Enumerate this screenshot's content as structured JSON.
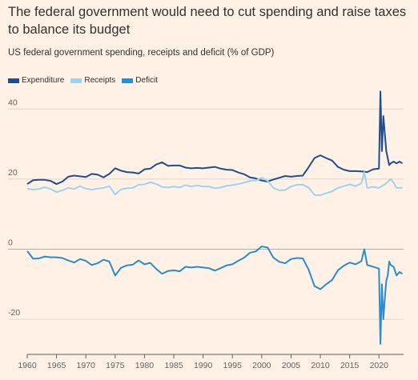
{
  "header": {
    "title": "The federal government would need to cut spending and raise taxes to balance its budget",
    "subtitle": "US federal government spending, receipts and deficit (% of GDP)"
  },
  "colors": {
    "background": "#fff1e5",
    "expenditure": "#1f4e8c",
    "receipts": "#9fd3ec",
    "deficit": "#2a8ccf",
    "grid": "#e0d6cc",
    "zero_line": "#b8aea6"
  },
  "chart_data": {
    "type": "line",
    "title": "The federal government would need to cut spending and raise taxes to balance its budget",
    "subtitle": "US federal government spending, receipts and deficit (% of GDP)",
    "xlabel": "",
    "ylabel": "",
    "xlim": [
      1960,
      2024.2
    ],
    "ylim": [
      -30,
      46
    ],
    "x_ticks": [
      1960,
      1965,
      1970,
      1975,
      1980,
      1985,
      1990,
      1995,
      2000,
      2005,
      2010,
      2015,
      2020
    ],
    "y_ticks": [
      40,
      20,
      0,
      -20
    ],
    "grid": true,
    "legend_position": "top-left",
    "series": [
      {
        "name": "Expenditure",
        "color": "#1f4e8c",
        "points": [
          [
            1960,
            18.6
          ],
          [
            1961,
            19.7
          ],
          [
            1962,
            19.8
          ],
          [
            1963,
            19.8
          ],
          [
            1964,
            19.5
          ],
          [
            1965,
            18.6
          ],
          [
            1966,
            19.3
          ],
          [
            1967,
            20.7
          ],
          [
            1968,
            21.0
          ],
          [
            1969,
            20.8
          ],
          [
            1970,
            20.6
          ],
          [
            1971,
            21.5
          ],
          [
            1972,
            21.3
          ],
          [
            1973,
            20.5
          ],
          [
            1974,
            21.5
          ],
          [
            1975,
            23.1
          ],
          [
            1976,
            22.4
          ],
          [
            1977,
            22.0
          ],
          [
            1978,
            21.9
          ],
          [
            1979,
            21.6
          ],
          [
            1980,
            22.8
          ],
          [
            1981,
            23.0
          ],
          [
            1982,
            24.2
          ],
          [
            1983,
            24.8
          ],
          [
            1984,
            23.8
          ],
          [
            1985,
            23.9
          ],
          [
            1986,
            23.9
          ],
          [
            1987,
            23.3
          ],
          [
            1988,
            23.1
          ],
          [
            1989,
            23.2
          ],
          [
            1990,
            23.1
          ],
          [
            1991,
            23.3
          ],
          [
            1992,
            23.5
          ],
          [
            1993,
            23.0
          ],
          [
            1994,
            22.7
          ],
          [
            1995,
            22.6
          ],
          [
            1996,
            21.9
          ],
          [
            1997,
            21.4
          ],
          [
            1998,
            20.5
          ],
          [
            1999,
            20.2
          ],
          [
            2000,
            19.6
          ],
          [
            2001,
            19.3
          ],
          [
            2002,
            19.9
          ],
          [
            2003,
            20.4
          ],
          [
            2004,
            20.9
          ],
          [
            2005,
            20.7
          ],
          [
            2006,
            20.9
          ],
          [
            2007,
            21.0
          ],
          [
            2008,
            23.4
          ],
          [
            2009,
            26.0
          ],
          [
            2010,
            26.8
          ],
          [
            2011,
            26.0
          ],
          [
            2012,
            25.3
          ],
          [
            2013,
            23.5
          ],
          [
            2014,
            22.7
          ],
          [
            2015,
            22.3
          ],
          [
            2016,
            22.3
          ],
          [
            2017,
            22.2
          ],
          [
            2018,
            22.0
          ],
          [
            2019,
            22.8
          ],
          [
            2020.0,
            23.0
          ],
          [
            2020.25,
            45.0
          ],
          [
            2020.5,
            28.0
          ],
          [
            2020.75,
            38.0
          ],
          [
            2021.0,
            33.0
          ],
          [
            2021.25,
            28.0
          ],
          [
            2021.5,
            26.0
          ],
          [
            2021.75,
            24.0
          ],
          [
            2022.0,
            24.5
          ],
          [
            2022.5,
            25.0
          ],
          [
            2023.0,
            24.5
          ],
          [
            2023.5,
            25.0
          ],
          [
            2024.0,
            24.5
          ]
        ]
      },
      {
        "name": "Receipts",
        "color": "#9fd3ec",
        "points": [
          [
            1960,
            17.3
          ],
          [
            1961,
            17.0
          ],
          [
            1962,
            17.2
          ],
          [
            1963,
            17.7
          ],
          [
            1964,
            17.2
          ],
          [
            1965,
            16.3
          ],
          [
            1966,
            16.8
          ],
          [
            1967,
            17.5
          ],
          [
            1968,
            17.2
          ],
          [
            1969,
            18.0
          ],
          [
            1970,
            17.3
          ],
          [
            1971,
            17.0
          ],
          [
            1972,
            17.3
          ],
          [
            1973,
            17.5
          ],
          [
            1974,
            18.0
          ],
          [
            1975,
            15.6
          ],
          [
            1976,
            17.1
          ],
          [
            1977,
            17.4
          ],
          [
            1978,
            17.5
          ],
          [
            1979,
            18.4
          ],
          [
            1980,
            18.5
          ],
          [
            1981,
            19.1
          ],
          [
            1982,
            18.6
          ],
          [
            1983,
            17.8
          ],
          [
            1984,
            17.6
          ],
          [
            1985,
            17.9
          ],
          [
            1986,
            17.6
          ],
          [
            1987,
            18.3
          ],
          [
            1988,
            17.9
          ],
          [
            1989,
            18.2
          ],
          [
            1990,
            17.9
          ],
          [
            1991,
            17.9
          ],
          [
            1992,
            17.4
          ],
          [
            1993,
            17.6
          ],
          [
            1994,
            18.1
          ],
          [
            1995,
            18.3
          ],
          [
            1996,
            18.6
          ],
          [
            1997,
            19.0
          ],
          [
            1998,
            19.5
          ],
          [
            1999,
            19.6
          ],
          [
            2000,
            20.4
          ],
          [
            2001,
            19.5
          ],
          [
            2002,
            17.5
          ],
          [
            2003,
            16.8
          ],
          [
            2004,
            16.9
          ],
          [
            2005,
            17.9
          ],
          [
            2006,
            18.4
          ],
          [
            2007,
            18.4
          ],
          [
            2008,
            17.6
          ],
          [
            2009,
            15.5
          ],
          [
            2010,
            15.4
          ],
          [
            2011,
            16.0
          ],
          [
            2012,
            16.5
          ],
          [
            2013,
            17.5
          ],
          [
            2014,
            18.0
          ],
          [
            2015,
            18.5
          ],
          [
            2016,
            18.0
          ],
          [
            2017,
            18.8
          ],
          [
            2017.5,
            22.0
          ],
          [
            2018,
            17.5
          ],
          [
            2019,
            17.8
          ],
          [
            2020,
            17.5
          ],
          [
            2021,
            18.5
          ],
          [
            2022,
            20.0
          ],
          [
            2022.5,
            19.0
          ],
          [
            2023,
            17.5
          ],
          [
            2024,
            17.5
          ]
        ]
      },
      {
        "name": "Deficit",
        "color": "#2a8ccf",
        "points": [
          [
            1960,
            -0.5
          ],
          [
            1961,
            -2.7
          ],
          [
            1962,
            -2.6
          ],
          [
            1963,
            -2.1
          ],
          [
            1964,
            -2.3
          ],
          [
            1965,
            -2.3
          ],
          [
            1966,
            -2.5
          ],
          [
            1967,
            -3.2
          ],
          [
            1968,
            -3.8
          ],
          [
            1969,
            -2.8
          ],
          [
            1970,
            -3.3
          ],
          [
            1971,
            -4.5
          ],
          [
            1972,
            -4.0
          ],
          [
            1973,
            -3.0
          ],
          [
            1974,
            -3.5
          ],
          [
            1975,
            -7.5
          ],
          [
            1976,
            -5.3
          ],
          [
            1977,
            -4.6
          ],
          [
            1978,
            -4.4
          ],
          [
            1979,
            -3.2
          ],
          [
            1980,
            -4.3
          ],
          [
            1981,
            -3.9
          ],
          [
            1982,
            -5.6
          ],
          [
            1983,
            -7.0
          ],
          [
            1984,
            -6.2
          ],
          [
            1985,
            -6.0
          ],
          [
            1986,
            -6.3
          ],
          [
            1987,
            -5.0
          ],
          [
            1988,
            -5.2
          ],
          [
            1989,
            -5.0
          ],
          [
            1990,
            -5.2
          ],
          [
            1991,
            -5.4
          ],
          [
            1992,
            -6.1
          ],
          [
            1993,
            -5.4
          ],
          [
            1994,
            -4.6
          ],
          [
            1995,
            -4.3
          ],
          [
            1996,
            -3.3
          ],
          [
            1997,
            -2.4
          ],
          [
            1998,
            -1.0
          ],
          [
            1999,
            -0.6
          ],
          [
            2000,
            0.8
          ],
          [
            2001,
            0.5
          ],
          [
            2002,
            -2.4
          ],
          [
            2003,
            -3.6
          ],
          [
            2004,
            -4.0
          ],
          [
            2005,
            -2.8
          ],
          [
            2006,
            -2.5
          ],
          [
            2007,
            -2.6
          ],
          [
            2008,
            -5.8
          ],
          [
            2009,
            -10.5
          ],
          [
            2010,
            -11.4
          ],
          [
            2011,
            -10.0
          ],
          [
            2012,
            -8.8
          ],
          [
            2013,
            -6.0
          ],
          [
            2014,
            -4.7
          ],
          [
            2015,
            -3.8
          ],
          [
            2016,
            -4.3
          ],
          [
            2017,
            -3.4
          ],
          [
            2017.5,
            0.0
          ],
          [
            2018,
            -4.5
          ],
          [
            2019,
            -5.0
          ],
          [
            2020.0,
            -5.5
          ],
          [
            2020.25,
            -27.0
          ],
          [
            2020.5,
            -10.0
          ],
          [
            2020.75,
            -20.0
          ],
          [
            2021.0,
            -14.0
          ],
          [
            2021.25,
            -9.0
          ],
          [
            2021.5,
            -7.5
          ],
          [
            2021.75,
            -3.5
          ],
          [
            2022.0,
            -4.5
          ],
          [
            2022.5,
            -5.0
          ],
          [
            2023.0,
            -7.5
          ],
          [
            2023.5,
            -6.5
          ],
          [
            2024.0,
            -7.0
          ]
        ]
      }
    ]
  }
}
